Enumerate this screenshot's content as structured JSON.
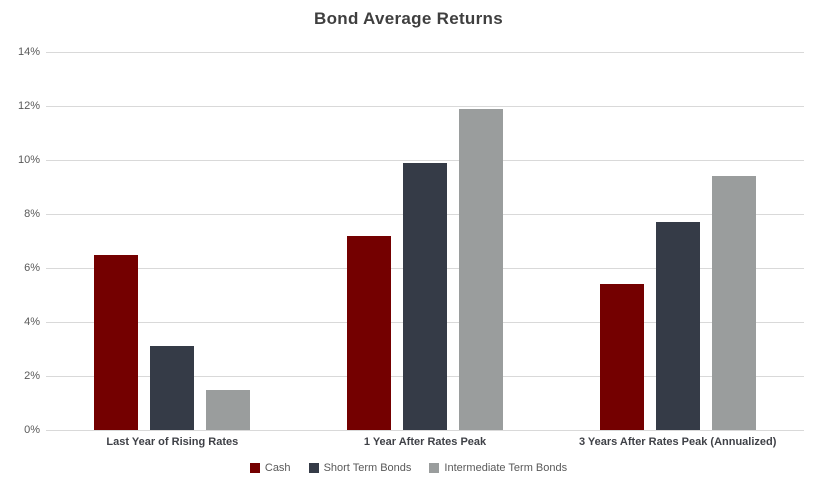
{
  "chart_data": {
    "type": "bar",
    "title": "Bond Average Returns",
    "categories": [
      "Last Year of Rising Rates",
      "1 Year After Rates Peak",
      "3 Years After Rates Peak (Annualized)"
    ],
    "series": [
      {
        "name": "Cash",
        "color": "#740000",
        "values": [
          6.5,
          7.2,
          5.4
        ]
      },
      {
        "name": "Short Term Bonds",
        "color": "#353b47",
        "values": [
          3.1,
          9.9,
          7.7
        ]
      },
      {
        "name": "Intermediate Term Bonds",
        "color": "#9a9d9d",
        "values": [
          1.5,
          11.9,
          9.4
        ]
      }
    ],
    "xlabel": "",
    "ylabel": "",
    "ylim": [
      0,
      14
    ],
    "ytick_step": 2,
    "yticks": [
      "0%",
      "2%",
      "4%",
      "6%",
      "8%",
      "10%",
      "12%",
      "14%"
    ],
    "grid": true,
    "legend_position": "bottom"
  },
  "colors": {
    "background": "#ffffff",
    "title": "#3f3f3f",
    "axis_label": "#595959",
    "category_label": "#3f4147",
    "gridline": "#d9d9d9"
  }
}
